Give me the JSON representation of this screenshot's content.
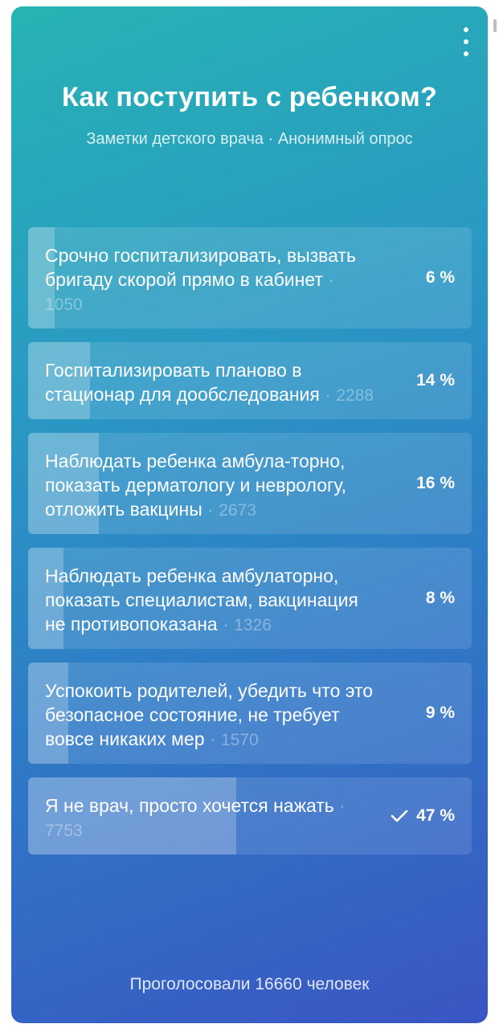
{
  "poll": {
    "title": "Как поступить с ребенком?",
    "subtitle": "Заметки детского врача · Анонимный опрос",
    "options": [
      {
        "label": "Срочно госпитализировать, вызвать бригаду скорой прямо в кабинет",
        "count": "1050",
        "percent": "6 %",
        "share": 0.06,
        "selected": false
      },
      {
        "label": "Госпитализировать планово в стационар для дообследования",
        "count": "2288",
        "percent": "14 %",
        "share": 0.14,
        "selected": false
      },
      {
        "label": "Наблюдать ребенка амбула-торно, показать дерматологу и неврологу, отложить вакцины",
        "count": "2673",
        "percent": "16 %",
        "share": 0.16,
        "selected": false
      },
      {
        "label": "Наблюдать ребенка амбулаторно, показать специалистам, вакцинация не противопоказана",
        "count": "1326",
        "percent": "8 %",
        "share": 0.08,
        "selected": false
      },
      {
        "label": "Успокоить родителей, убедить что это безопасное состояние, не требует вовсе никаких мер",
        "count": "1570",
        "percent": "9 %",
        "share": 0.09,
        "selected": false
      },
      {
        "label": "Я не врач, просто хочется нажать",
        "count": "7753",
        "percent": "47 %",
        "share": 0.47,
        "selected": true
      }
    ],
    "total_votes": "Проголосовали 16660 человек"
  },
  "icons": {
    "menu": "more-vertical-icon",
    "selected": "check-icon"
  },
  "colors": {
    "gradient_start": "#27b3b3",
    "gradient_end": "#3a55c2"
  }
}
